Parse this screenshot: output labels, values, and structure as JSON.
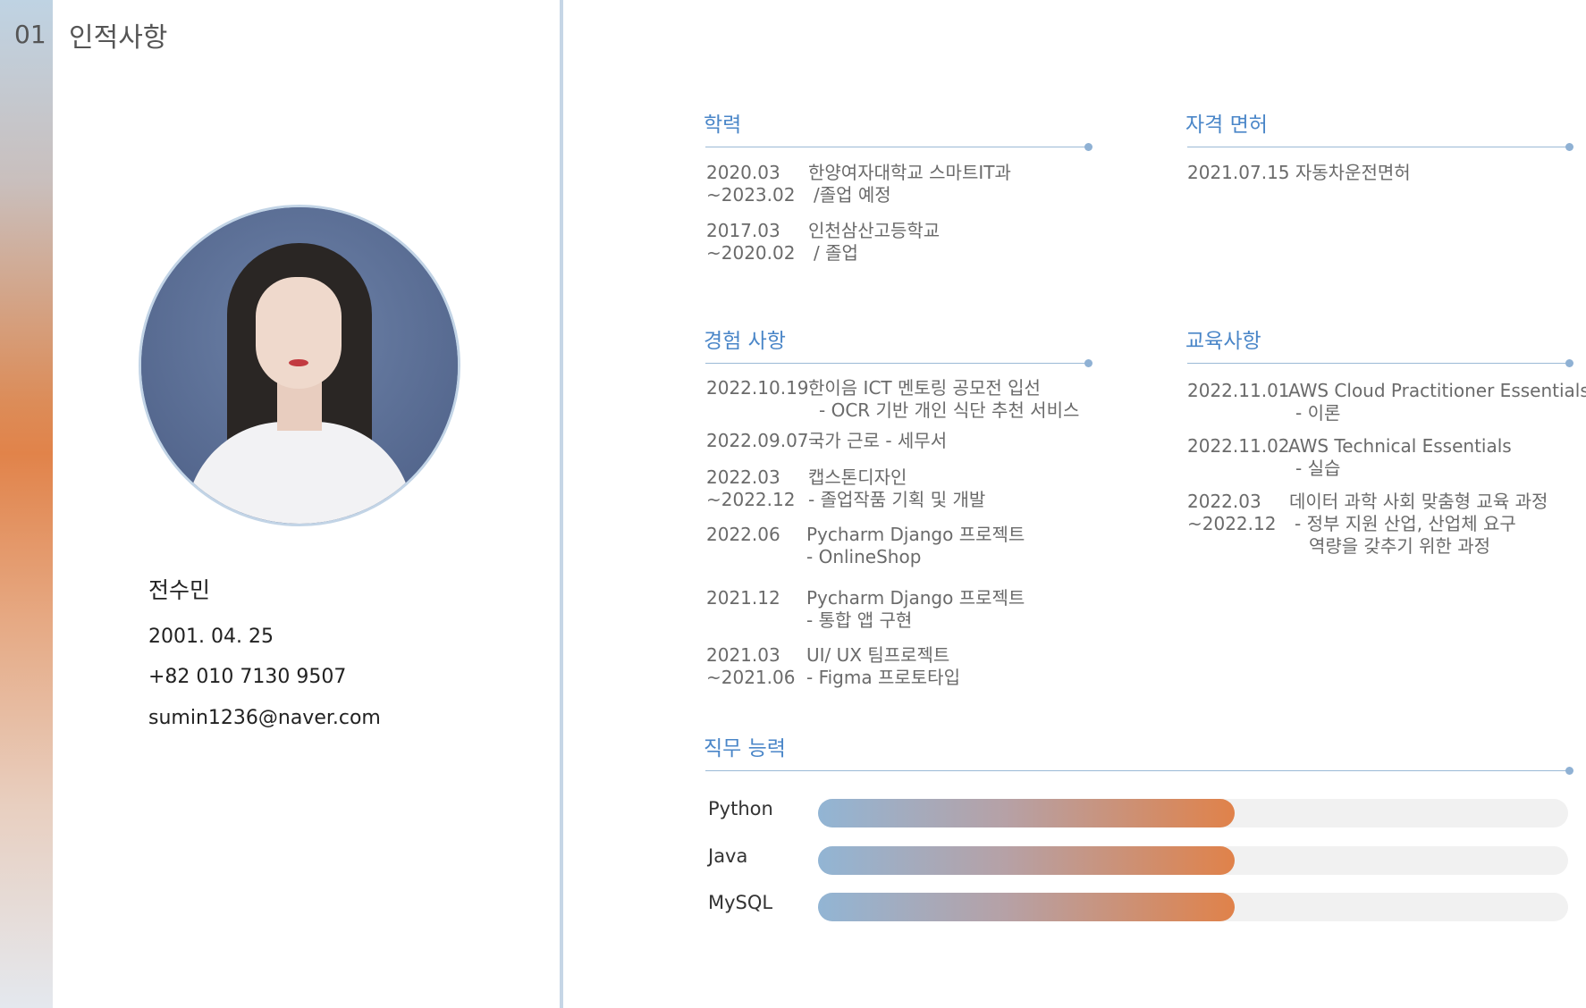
{
  "header": {
    "number": "01",
    "title": "인적사항"
  },
  "profile": {
    "name": "전수민",
    "birth": "2001. 04. 25",
    "phone": "+82 010 7130 9507",
    "email": "sumin1236@naver.com"
  },
  "education": {
    "title": "학력",
    "items": [
      {
        "date1": "2020.03",
        "date2": "~2023.02",
        "line1": "한양여자대학교 스마트IT과",
        "line2": "/졸업 예정"
      },
      {
        "date1": "2017.03",
        "date2": "~2020.02",
        "line1": "인천삼산고등학교",
        "line2": "/ 졸업"
      }
    ]
  },
  "license": {
    "title": "자격 면허",
    "items": [
      {
        "date": "2021.07.15",
        "text": "자동차운전면허"
      }
    ]
  },
  "experience": {
    "title": "경험 사항",
    "items": [
      {
        "date1": "2022.10.19",
        "date2": "",
        "line1": "한이음 ICT 멘토링 공모전 입선",
        "line2": "- OCR 기반 개인 식단 추천 서비스"
      },
      {
        "date1": "2022.09.07",
        "date2": "",
        "line1": "국가 근로 - 세무서",
        "line2": ""
      },
      {
        "date1": "2022.03",
        "date2": "~2022.12",
        "line1": "캡스톤디자인",
        "line2": "- 졸업작품 기획 및 개발"
      },
      {
        "date1": "2022.06",
        "date2": "",
        "line1": "Pycharm Django 프로젝트",
        "line2": "- OnlineShop"
      },
      {
        "date1": "2021.12",
        "date2": "",
        "line1": "Pycharm Django 프로젝트",
        "line2": "- 통합 앱 구현"
      },
      {
        "date1": "2021.03",
        "date2": "~2021.06",
        "line1": "UI/ UX 팀프로젝트",
        "line2": "-   Figma 프로토타입"
      }
    ]
  },
  "training": {
    "title": "교육사항",
    "items": [
      {
        "date1": "2022.11.01",
        "date2": "",
        "line1": "AWS Cloud Practitioner Essentials",
        "line2": "- 이론",
        "line3": ""
      },
      {
        "date1": "2022.11.02",
        "date2": "",
        "line1": "AWS Technical Essentials",
        "line2": "- 실습",
        "line3": ""
      },
      {
        "date1": "2022.03",
        "date2": "~2022.12",
        "line1": "데이터 과학 사회 맞춤형 교육 과정",
        "line2": "- 정부 지원 산업, 산업체 요구",
        "line3": "역량을 갖추기 위한 과정"
      }
    ]
  },
  "skills": {
    "title": "직무 능력",
    "items": [
      {
        "name": "Python",
        "level": 0.556
      },
      {
        "name": "Java",
        "level": 0.556
      },
      {
        "name": "MySQL",
        "level": 0.556
      }
    ]
  },
  "colors": {
    "accent": "#4a86c8",
    "orange": "#e0824a",
    "blue": "#92b5d4"
  }
}
